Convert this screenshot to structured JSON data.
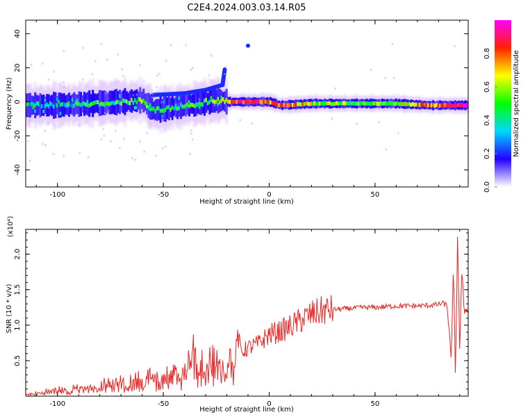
{
  "title": "C2E4.2024.003.03.14.R05",
  "chart_data": [
    {
      "type": "heatmap",
      "panel": "spectrogram",
      "xlabel": "Height of straight line (km)",
      "ylabel": "Frequency (Hz)",
      "xlim": [
        -115,
        94
      ],
      "ylim": [
        -50,
        48
      ],
      "xticks": [
        -100,
        -50,
        0,
        50
      ],
      "xtick_labels": [
        "-100",
        "-50",
        "0",
        "50"
      ],
      "yticks": [
        -40,
        -20,
        0,
        20,
        40
      ],
      "ytick_labels": [
        "-40",
        "-20",
        "0",
        "20",
        "40"
      ],
      "colorbar": {
        "label": "Normalized spectral amplitude",
        "range": [
          0,
          1
        ],
        "ticks": [
          0.0,
          0.2,
          0.4,
          0.6,
          0.8
        ],
        "tick_labels": [
          "0.0",
          "0.2",
          "0.4",
          "0.6",
          "0.8"
        ],
        "colors": [
          "#ffffff",
          "#2200ff",
          "#00d8ff",
          "#00ff00",
          "#ffff00",
          "#ff2200",
          "#ff00ff"
        ]
      },
      "ridge": [
        {
          "x": -115,
          "y": -2,
          "amp": 0.35
        },
        {
          "x": -100,
          "y": -2,
          "amp": 0.35
        },
        {
          "x": -85,
          "y": -1,
          "amp": 0.45
        },
        {
          "x": -70,
          "y": 0,
          "amp": 0.45
        },
        {
          "x": -60,
          "y": 1,
          "amp": 0.6
        },
        {
          "x": -55,
          "y": -5,
          "amp": 0.4
        },
        {
          "x": -45,
          "y": -3,
          "amp": 0.45
        },
        {
          "x": -35,
          "y": -1,
          "amp": 0.45
        },
        {
          "x": -25,
          "y": 1,
          "amp": 0.5
        },
        {
          "x": -20,
          "y": 0,
          "amp": 0.7
        },
        {
          "x": -10,
          "y": 0,
          "amp": 0.95
        },
        {
          "x": 0,
          "y": 0,
          "amp": 0.8
        },
        {
          "x": 5,
          "y": -2,
          "amp": 0.85
        },
        {
          "x": 20,
          "y": -1,
          "amp": 0.6
        },
        {
          "x": 40,
          "y": -1,
          "amp": 0.5
        },
        {
          "x": 60,
          "y": -1,
          "amp": 0.55
        },
        {
          "x": 75,
          "y": -2,
          "amp": 0.75
        },
        {
          "x": 94,
          "y": -2,
          "amp": 0.95
        }
      ],
      "upper_branch": [
        {
          "x": -55,
          "y": 4
        },
        {
          "x": -40,
          "y": 5
        },
        {
          "x": -30,
          "y": 7
        },
        {
          "x": -22,
          "y": 10
        },
        {
          "x": -21,
          "y": 19
        }
      ]
    },
    {
      "type": "line",
      "panel": "snr",
      "xlabel": "Height of straight line (km)",
      "ylabel": "SNR (10 * v/v)",
      "ylabel_multiplier": "(x10⁴)",
      "xlim": [
        -115,
        94
      ],
      "ylim": [
        0,
        23500
      ],
      "xticks": [
        -100,
        -50,
        0,
        50
      ],
      "xtick_labels": [
        "-100",
        "-50",
        "0",
        "50"
      ],
      "yticks": [
        5000,
        10000,
        15000,
        20000
      ],
      "ytick_labels": [
        "0.5",
        "1.0",
        "1.5",
        "2.0"
      ],
      "color": "#ee2222",
      "series": [
        {
          "x": [
            -115,
            -105,
            -95,
            -85,
            -75,
            -65,
            -55,
            -45,
            -38,
            -35,
            -30,
            -25,
            -20,
            -16,
            -15,
            -13,
            -10,
            -5,
            0,
            5,
            10,
            15,
            20,
            25,
            30,
            35,
            40,
            45,
            50,
            55,
            60,
            65,
            70,
            75,
            80,
            82,
            84,
            85,
            86,
            87,
            88,
            89,
            90,
            91,
            92,
            94
          ],
          "values": [
            300,
            700,
            1100,
            1400,
            1800,
            2200,
            2900,
            3400,
            4200,
            6200,
            4700,
            4900,
            4900,
            5600,
            8500,
            6200,
            6800,
            7400,
            8700,
            9100,
            9800,
            10700,
            11500,
            12000,
            12200,
            12300,
            12400,
            12500,
            12500,
            12600,
            12700,
            12700,
            12700,
            12800,
            12900,
            13100,
            12800,
            9500,
            4800,
            19000,
            2000,
            23500,
            6000,
            18000,
            12000,
            12400
          ]
        }
      ]
    }
  ]
}
